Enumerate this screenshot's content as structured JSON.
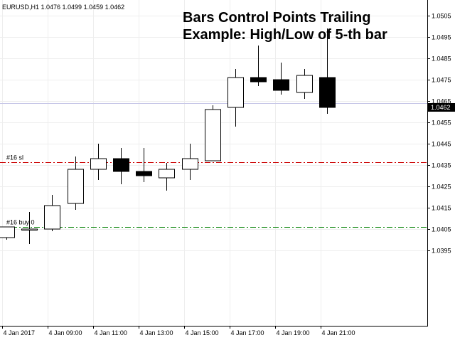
{
  "symbol_info": "EURUSD,H1  1.0476 1.0499 1.0459 1.0462",
  "title_line1": "Bars Control Points Trailing",
  "title_line2": "Example: High/Low of 5-th bar",
  "current_price_label": "1.0462",
  "colors": {
    "background": "#ffffff",
    "grid": "#eeeeee",
    "axis": "#000000",
    "bull_body": "#ffffff",
    "bear_body": "#000000",
    "sl_line": "#cc0000",
    "entry_line": "#008000",
    "bid_line": "#c8c8e8",
    "price_tag_bg": "#000000"
  },
  "chart_data": {
    "type": "candlestick",
    "title": "Bars Control Points Trailing Example: High/Low of 5-th bar",
    "symbol": "EURUSD",
    "timeframe": "H1",
    "ylim": [
      1.039,
      1.051
    ],
    "y_ticks": [
      "1.0505",
      "1.0495",
      "1.0485",
      "1.0475",
      "1.0465",
      "1.0455",
      "1.0445",
      "1.0435",
      "1.0425",
      "1.0415",
      "1.0405",
      "1.0395"
    ],
    "x_ticks": [
      "4 Jan 2017",
      "4 Jan 09:00",
      "4 Jan 11:00",
      "4 Jan 13:00",
      "4 Jan 15:00",
      "4 Jan 17:00",
      "4 Jan 19:00",
      "4 Jan 21:00"
    ],
    "grid": true,
    "candles": [
      {
        "open": 1.0401,
        "high": 1.0406,
        "low": 1.04,
        "close": 1.0406
      },
      {
        "open": 1.0405,
        "high": 1.0413,
        "low": 1.0398,
        "close": 1.0405
      },
      {
        "open": 1.0405,
        "high": 1.0421,
        "low": 1.0404,
        "close": 1.0416
      },
      {
        "open": 1.0417,
        "high": 1.0439,
        "low": 1.0414,
        "close": 1.0433
      },
      {
        "open": 1.0433,
        "high": 1.0445,
        "low": 1.0428,
        "close": 1.0438
      },
      {
        "open": 1.0438,
        "high": 1.0443,
        "low": 1.0426,
        "close": 1.0432
      },
      {
        "open": 1.0432,
        "high": 1.0443,
        "low": 1.0427,
        "close": 1.043
      },
      {
        "open": 1.0429,
        "high": 1.0436,
        "low": 1.0423,
        "close": 1.0433
      },
      {
        "open": 1.0433,
        "high": 1.0445,
        "low": 1.0428,
        "close": 1.0438
      },
      {
        "open": 1.0437,
        "high": 1.0463,
        "low": 1.0437,
        "close": 1.0461
      },
      {
        "open": 1.0462,
        "high": 1.048,
        "low": 1.0453,
        "close": 1.0476
      },
      {
        "open": 1.0476,
        "high": 1.0491,
        "low": 1.0472,
        "close": 1.0474
      },
      {
        "open": 1.0475,
        "high": 1.0483,
        "low": 1.0468,
        "close": 1.047
      },
      {
        "open": 1.0469,
        "high": 1.048,
        "low": 1.0466,
        "close": 1.0477
      },
      {
        "open": 1.0476,
        "high": 1.0499,
        "low": 1.0459,
        "close": 1.0462
      }
    ],
    "levels": [
      {
        "label": "#16 sl",
        "price": 1.04362,
        "style": "dash-dot",
        "color": "#cc0000"
      },
      {
        "label": "#16 buy 0",
        "price": 1.04061,
        "style": "dash-dot",
        "color": "#008000"
      },
      {
        "label": "",
        "price": 1.0464,
        "style": "solid",
        "color": "#c8c8e8"
      }
    ],
    "current_price": 1.0462
  }
}
